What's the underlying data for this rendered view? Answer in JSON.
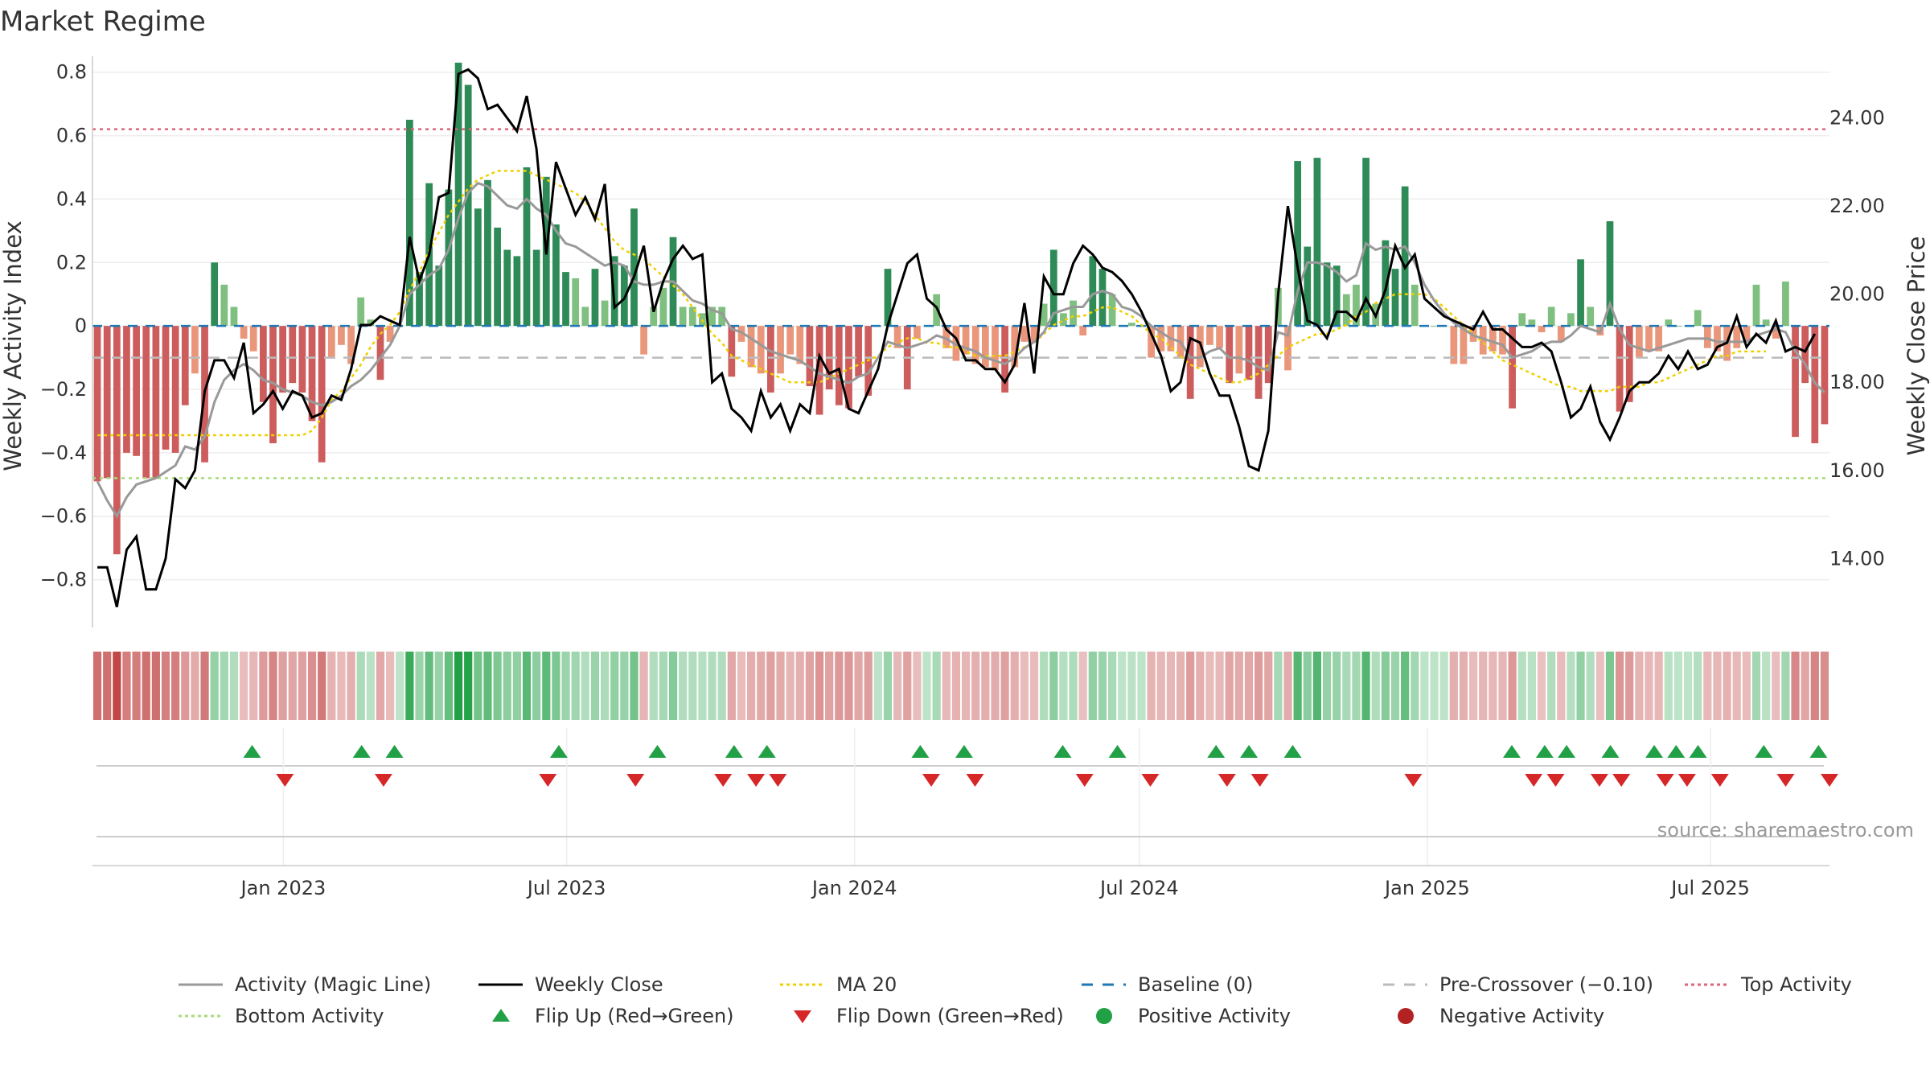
{
  "chart_data": {
    "type": "bar",
    "title": "Market Regime",
    "ylabel": "Weekly Activity Index",
    "y2label": "Weekly Close Price",
    "source": "source: sharemaestro.com",
    "x_tick_labels": [
      "Jan 2023",
      "Jul 2023",
      "Jan 2024",
      "Jul 2024",
      "Jan 2025",
      "Jul 2025"
    ],
    "x_ticks": [
      "2023-01-01",
      "2023-07-01",
      "2024-01-01",
      "2024-07-01",
      "2025-01-01",
      "2025-07-01"
    ],
    "y_ticks": [
      0.8,
      0.6,
      0.4,
      0.2,
      0,
      -0.2,
      -0.4,
      -0.6,
      -0.8
    ],
    "y_tick_labels": [
      "0.8",
      "0.6",
      "0.4",
      "0.2",
      "0",
      "−0.2",
      "−0.4",
      "−0.6",
      "−0.8"
    ],
    "y2_ticks": [
      24,
      22,
      20,
      18,
      16,
      14
    ],
    "y2_tick_labels": [
      "24.00",
      "22.00",
      "20.00",
      "18.00",
      "16.00",
      "14.00"
    ],
    "ylim": [
      -0.9,
      0.85
    ],
    "y2lim": [
      12.8,
      25.4
    ],
    "start_date": "2022-09-01",
    "end_date": "2025-09-15",
    "reference_lines": {
      "top_activity": 0.62,
      "bottom_activity": -0.48,
      "pre_crossover": -0.1,
      "baseline": 0
    },
    "activity": [
      -0.49,
      -0.48,
      -0.72,
      -0.4,
      -0.41,
      -0.48,
      -0.48,
      -0.39,
      -0.4,
      -0.25,
      -0.15,
      -0.43,
      0.2,
      0.13,
      0.06,
      -0.04,
      -0.08,
      -0.24,
      -0.37,
      -0.21,
      -0.18,
      -0.21,
      -0.3,
      -0.43,
      -0.1,
      -0.06,
      -0.12,
      0.09,
      0.02,
      -0.17,
      -0.05,
      0.0,
      0.65,
      0.17,
      0.45,
      0.19,
      0.43,
      0.83,
      0.76,
      0.37,
      0.46,
      0.31,
      0.24,
      0.22,
      0.5,
      0.24,
      0.47,
      0.32,
      0.17,
      0.15,
      0.06,
      0.18,
      0.08,
      0.22,
      0.19,
      0.37,
      -0.09,
      0.06,
      0.12,
      0.28,
      0.06,
      0.06,
      0.04,
      0.06,
      0.06,
      -0.16,
      -0.05,
      -0.13,
      -0.15,
      -0.21,
      -0.15,
      -0.09,
      -0.12,
      -0.19,
      -0.28,
      -0.2,
      -0.25,
      -0.26,
      -0.16,
      -0.22,
      0.0,
      0.18,
      -0.07,
      -0.2,
      -0.04,
      0.0,
      0.1,
      -0.07,
      -0.11,
      -0.09,
      -0.12,
      -0.13,
      -0.14,
      -0.21,
      -0.13,
      -0.05,
      -0.05,
      0.07,
      0.24,
      0.04,
      0.08,
      -0.03,
      0.22,
      0.18,
      0.1,
      0.0,
      0.01,
      0.0,
      -0.1,
      -0.08,
      -0.08,
      -0.1,
      -0.23,
      -0.13,
      -0.06,
      -0.07,
      -0.18,
      -0.15,
      -0.17,
      -0.23,
      -0.18,
      0.12,
      -0.14,
      0.52,
      0.25,
      0.53,
      0.2,
      0.19,
      0.1,
      0.13,
      0.53,
      0.07,
      0.27,
      0.18,
      0.44,
      0.13,
      0.0,
      0.0,
      0.0,
      -0.12,
      -0.12,
      -0.05,
      -0.09,
      -0.08,
      -0.09,
      -0.26,
      0.04,
      0.02,
      -0.02,
      0.06,
      -0.05,
      0.04,
      0.21,
      0.06,
      -0.03,
      0.33,
      -0.27,
      -0.24,
      -0.1,
      -0.08,
      -0.08,
      0.02,
      0.0,
      0.0,
      0.05,
      -0.07,
      -0.08,
      -0.11,
      -0.07,
      -0.05,
      0.13,
      0.02,
      -0.04,
      0.14,
      -0.35,
      -0.18,
      -0.37,
      -0.31
    ],
    "activity_magic_line": [
      -0.49,
      -0.55,
      -0.6,
      -0.54,
      -0.5,
      -0.49,
      -0.48,
      -0.46,
      -0.44,
      -0.38,
      -0.39,
      -0.35,
      -0.24,
      -0.17,
      -0.14,
      -0.12,
      -0.14,
      -0.17,
      -0.18,
      -0.2,
      -0.21,
      -0.22,
      -0.24,
      -0.25,
      -0.24,
      -0.22,
      -0.19,
      -0.17,
      -0.14,
      -0.1,
      -0.06,
      0.0,
      0.1,
      0.13,
      0.16,
      0.18,
      0.24,
      0.34,
      0.42,
      0.45,
      0.44,
      0.41,
      0.38,
      0.37,
      0.4,
      0.37,
      0.35,
      0.3,
      0.26,
      0.25,
      0.23,
      0.21,
      0.19,
      0.2,
      0.19,
      0.14,
      0.13,
      0.13,
      0.14,
      0.14,
      0.11,
      0.08,
      0.07,
      0.05,
      0.04,
      -0.01,
      -0.02,
      -0.04,
      -0.06,
      -0.08,
      -0.09,
      -0.1,
      -0.11,
      -0.13,
      -0.15,
      -0.16,
      -0.17,
      -0.18,
      -0.16,
      -0.15,
      -0.1,
      -0.05,
      -0.06,
      -0.07,
      -0.06,
      -0.05,
      -0.03,
      -0.04,
      -0.06,
      -0.07,
      -0.08,
      -0.1,
      -0.11,
      -0.12,
      -0.1,
      -0.07,
      -0.05,
      -0.02,
      0.04,
      0.05,
      0.06,
      0.06,
      0.1,
      0.11,
      0.1,
      0.06,
      0.05,
      0.03,
      0.0,
      -0.02,
      -0.04,
      -0.05,
      -0.1,
      -0.1,
      -0.08,
      -0.07,
      -0.1,
      -0.1,
      -0.11,
      -0.13,
      -0.14,
      -0.02,
      -0.03,
      0.11,
      0.2,
      0.2,
      0.19,
      0.17,
      0.14,
      0.16,
      0.26,
      0.24,
      0.25,
      0.24,
      0.25,
      0.2,
      0.13,
      0.08,
      0.04,
      0.01,
      -0.01,
      -0.03,
      -0.04,
      -0.05,
      -0.06,
      -0.1,
      -0.09,
      -0.08,
      -0.06,
      -0.05,
      -0.05,
      -0.03,
      0.0,
      -0.01,
      -0.02,
      0.07,
      -0.01,
      -0.06,
      -0.07,
      -0.08,
      -0.07,
      -0.06,
      -0.05,
      -0.04,
      -0.04,
      -0.04,
      -0.05,
      -0.05,
      -0.05,
      -0.05,
      -0.03,
      -0.02,
      -0.01,
      -0.02,
      -0.08,
      -0.12,
      -0.18,
      -0.21
    ],
    "weekly_close": [
      13.8,
      13.8,
      12.9,
      14.2,
      14.5,
      13.3,
      13.3,
      14.0,
      15.8,
      15.6,
      16.0,
      17.8,
      18.5,
      18.5,
      18.1,
      18.9,
      17.3,
      17.5,
      17.8,
      17.4,
      17.8,
      17.7,
      17.2,
      17.3,
      17.7,
      17.6,
      18.3,
      19.3,
      19.3,
      19.5,
      19.4,
      19.3,
      21.3,
      20.3,
      20.9,
      22.2,
      22.3,
      25.0,
      25.1,
      24.9,
      24.2,
      24.3,
      24.0,
      23.7,
      24.5,
      23.3,
      20.9,
      23.0,
      22.4,
      21.8,
      22.2,
      21.7,
      22.5,
      19.7,
      19.9,
      20.4,
      21.1,
      19.6,
      20.3,
      20.8,
      21.1,
      20.8,
      20.9,
      18.0,
      18.2,
      17.4,
      17.2,
      16.9,
      17.8,
      17.2,
      17.5,
      16.9,
      17.5,
      17.3,
      18.6,
      18.2,
      18.3,
      17.4,
      17.3,
      17.8,
      18.3,
      19.3,
      20.0,
      20.7,
      20.9,
      19.9,
      19.7,
      19.2,
      19.0,
      18.5,
      18.5,
      18.3,
      18.3,
      18.0,
      18.4,
      19.8,
      18.2,
      20.4,
      20.0,
      20.0,
      20.7,
      21.1,
      20.9,
      20.6,
      20.5,
      20.3,
      20.0,
      19.6,
      19.1,
      18.6,
      17.8,
      18.0,
      19.0,
      18.9,
      18.2,
      17.7,
      17.7,
      17.0,
      16.1,
      16.0,
      16.9,
      20.0,
      22.0,
      20.6,
      19.4,
      19.3,
      19.0,
      19.6,
      19.6,
      19.4,
      19.9,
      19.5,
      20.1,
      21.1,
      20.6,
      20.9,
      19.9,
      19.7,
      19.5,
      19.4,
      19.3,
      19.2,
      19.6,
      19.2,
      19.2,
      19.0,
      18.8,
      18.8,
      18.9,
      18.7,
      18.0,
      17.2,
      17.4,
      17.9,
      17.1,
      16.7,
      17.2,
      17.8,
      18.0,
      18.0,
      18.2,
      18.6,
      18.3,
      18.7,
      18.3,
      18.4,
      18.8,
      18.9,
      19.5,
      18.8,
      19.1,
      18.9,
      19.4,
      18.7,
      18.8,
      18.7,
      19.1
    ],
    "ma20": [
      16.8,
      16.8,
      16.8,
      16.8,
      16.8,
      16.8,
      16.8,
      16.8,
      16.8,
      16.8,
      16.8,
      16.8,
      16.8,
      16.8,
      16.8,
      16.8,
      16.8,
      16.8,
      16.8,
      16.8,
      16.8,
      16.8,
      16.9,
      17.2,
      17.6,
      17.8,
      18.1,
      18.4,
      18.8,
      19.1,
      19.3,
      19.6,
      20.1,
      20.5,
      21.0,
      21.4,
      21.8,
      22.1,
      22.4,
      22.6,
      22.7,
      22.8,
      22.8,
      22.8,
      22.8,
      22.7,
      22.6,
      22.5,
      22.4,
      22.3,
      22.1,
      21.8,
      21.5,
      21.2,
      21.0,
      20.9,
      20.8,
      20.6,
      20.4,
      20.2,
      20.0,
      19.7,
      19.4,
      19.1,
      18.9,
      18.6,
      18.5,
      18.4,
      18.3,
      18.2,
      18.1,
      18.0,
      18.0,
      18.0,
      18.0,
      18.1,
      18.2,
      18.3,
      18.4,
      18.5,
      18.6,
      18.8,
      18.9,
      19.0,
      19.0,
      18.9,
      18.9,
      18.8,
      18.8,
      18.7,
      18.6,
      18.6,
      18.6,
      18.6,
      18.7,
      18.8,
      18.9,
      19.1,
      19.3,
      19.4,
      19.5,
      19.5,
      19.6,
      19.7,
      19.7,
      19.6,
      19.5,
      19.3,
      19.1,
      19.0,
      18.8,
      18.6,
      18.4,
      18.3,
      18.2,
      18.1,
      18.0,
      18.0,
      18.1,
      18.2,
      18.4,
      18.6,
      18.8,
      18.9,
      19.0,
      19.1,
      19.1,
      19.2,
      19.3,
      19.5,
      19.6,
      19.8,
      19.9,
      20.0,
      20.0,
      20.0,
      20.0,
      19.9,
      19.7,
      19.5,
      19.3,
      19.1,
      18.9,
      18.7,
      18.5,
      18.4,
      18.3,
      18.2,
      18.1,
      18.0,
      17.9,
      17.9,
      17.8,
      17.8,
      17.8,
      17.8,
      17.9,
      17.9,
      17.9,
      18.0,
      18.0,
      18.1,
      18.2,
      18.3,
      18.4,
      18.5,
      18.6,
      18.6,
      18.7,
      18.7,
      18.7,
      18.7
    ],
    "flip_up_dates": [
      "2022-12-12",
      "2023-02-20",
      "2023-03-13",
      "2023-06-26",
      "2023-08-28",
      "2023-10-16",
      "2023-11-06",
      "2024-02-12",
      "2024-03-11",
      "2024-05-13",
      "2024-06-17",
      "2024-08-19",
      "2024-09-09",
      "2024-10-07",
      "2025-02-24",
      "2025-03-17",
      "2025-03-31",
      "2025-04-28",
      "2025-05-26",
      "2025-06-09",
      "2025-06-23",
      "2025-08-04",
      "2025-09-08"
    ],
    "flip_down_dates": [
      "2023-01-02",
      "2023-03-06",
      "2023-06-19",
      "2023-08-14",
      "2023-10-09",
      "2023-10-30",
      "2023-11-13",
      "2024-02-19",
      "2024-03-18",
      "2024-05-27",
      "2024-07-08",
      "2024-08-26",
      "2024-09-16",
      "2024-12-23",
      "2025-03-10",
      "2025-03-24",
      "2025-04-21",
      "2025-05-05",
      "2025-06-02",
      "2025-06-16",
      "2025-07-07",
      "2025-08-18",
      "2025-09-15"
    ]
  },
  "legend": [
    {
      "key": "magic_line",
      "label": "Activity (Magic Line)"
    },
    {
      "key": "weekly_close",
      "label": "Weekly Close"
    },
    {
      "key": "ma20",
      "label": "MA 20"
    },
    {
      "key": "baseline",
      "label": "Baseline (0)"
    },
    {
      "key": "pre_crossover",
      "label": "Pre-Crossover (−0.10)"
    },
    {
      "key": "top_activity",
      "label": "Top Activity"
    },
    {
      "key": "bottom_activity",
      "label": "Bottom Activity"
    },
    {
      "key": "flip_up",
      "label": "Flip Up (Red→Green)"
    },
    {
      "key": "flip_down",
      "label": "Flip Down (Green→Red)"
    },
    {
      "key": "positive",
      "label": "Positive Activity"
    },
    {
      "key": "negative",
      "label": "Negative Activity"
    }
  ],
  "colors": {
    "pos_strong": "#2e8b57",
    "pos_light": "#7fbf7f",
    "neg_strong": "#cd5c5c",
    "neg_light": "#e9967a",
    "magic_line": "#999999",
    "weekly_close": "#000000",
    "ma20": "#f0d000",
    "baseline": "#1f77b4",
    "pre_crossover": "#bbbbbb",
    "top_activity": "#d9687a",
    "bottom_activity": "#a8dc7a",
    "flip_up": "#22a046",
    "flip_down": "#d62728",
    "positive_dot": "#22a046",
    "negative_dot": "#b22222"
  }
}
